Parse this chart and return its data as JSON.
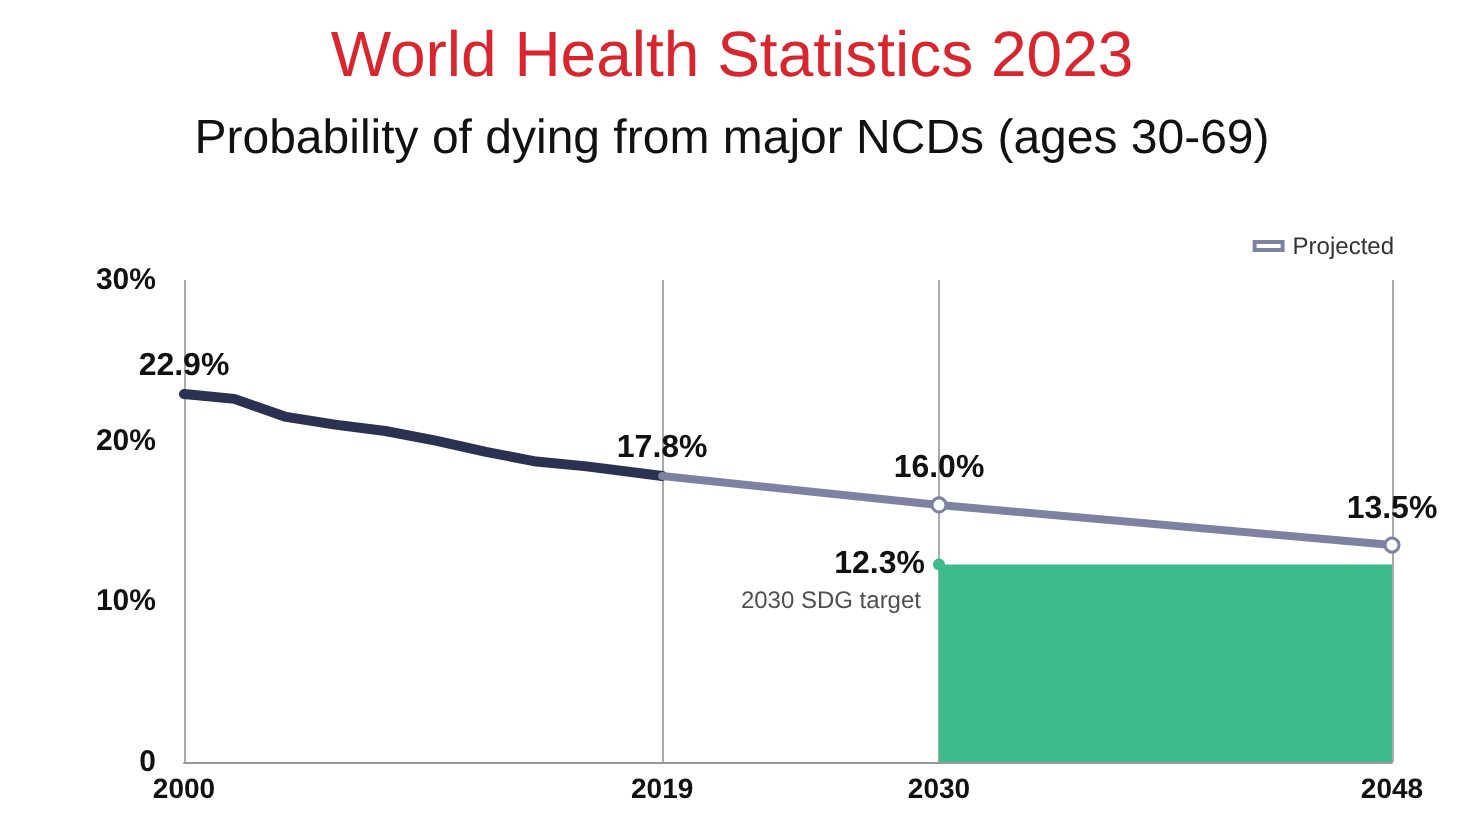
{
  "chart_data": {
    "type": "line",
    "title": "World Health Statistics 2023",
    "subtitle": "Probability of dying from major NCDs (ages 30-69)",
    "xlim": [
      2000,
      2048
    ],
    "xticks": [
      2000,
      2019,
      2030,
      2048
    ],
    "ylim": [
      0,
      30
    ],
    "yticks": [
      0,
      {
        "value": 10,
        "label": "10%"
      },
      {
        "value": 20,
        "label": "20%"
      },
      {
        "value": 30,
        "label": "30%"
      }
    ],
    "grid": "x",
    "legend": "top right",
    "line_style": "solid",
    "series": [
      {
        "color": "#2b3150",
        "marker": "none",
        "x": [
          2000,
          2002,
          2004,
          2006,
          2008,
          2010,
          2012,
          2014,
          2016,
          2019
        ],
        "values": [
          22.9,
          22.6,
          21.5,
          21.0,
          20.6,
          20.0,
          19.3,
          18.7,
          18.4,
          17.8
        ],
        "value_labels": [
          "22.9%",
          null,
          null,
          null,
          null,
          null,
          null,
          null,
          null,
          "17.8%"
        ]
      },
      {
        "name": "Projected",
        "color": "#7d82a3",
        "marker": "circle",
        "x": [
          2019,
          2030,
          2048
        ],
        "values": [
          17.8,
          16.0,
          13.5
        ],
        "value_labels": [
          null,
          "16.0%",
          "13.5%"
        ]
      },
      {
        "type": "area",
        "color": "#3dbb8a",
        "marker": "circle",
        "x": [
          2030,
          2048
        ],
        "values": [
          12.3,
          12.3
        ],
        "value_labels": [
          "12.3%",
          null
        ]
      }
    ],
    "annotations": [
      {
        "text": "2030 SDG target",
        "x": 2030,
        "y": 12.3
      }
    ]
  }
}
